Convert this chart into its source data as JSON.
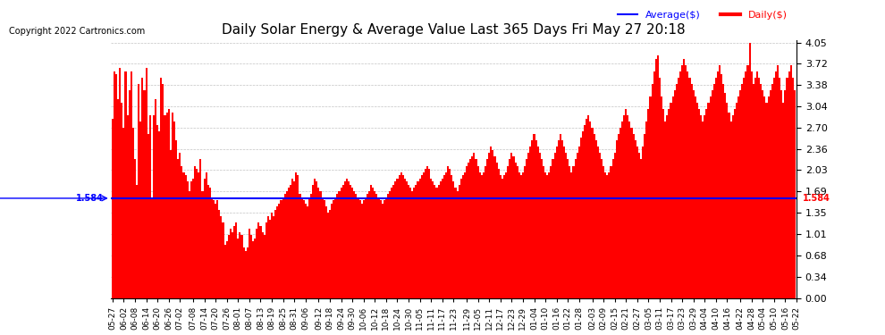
{
  "title": "Daily Solar Energy & Average Value Last 365 Days Fri May 27 20:18",
  "copyright": "Copyright 2022 Cartronics.com",
  "average_value": 1.584,
  "average_label": "1.584",
  "yticks": [
    0.0,
    0.34,
    0.68,
    1.01,
    1.35,
    1.69,
    2.03,
    2.36,
    2.7,
    3.04,
    3.38,
    3.72,
    4.05
  ],
  "ymax": 4.05,
  "ymin": 0.0,
  "bar_color": "#ff0000",
  "avg_line_color": "#0000ff",
  "background_color": "#ffffff",
  "grid_color": "#aaaaaa",
  "legend_avg_color": "#0000ff",
  "legend_daily_color": "#ff0000",
  "x_labels": [
    "05-27",
    "06-02",
    "06-08",
    "06-14",
    "06-20",
    "06-26",
    "07-02",
    "07-08",
    "07-14",
    "07-20",
    "07-26",
    "08-01",
    "08-07",
    "08-13",
    "08-19",
    "08-25",
    "08-31",
    "09-06",
    "09-12",
    "09-18",
    "09-24",
    "09-30",
    "10-06",
    "10-12",
    "10-18",
    "10-24",
    "10-30",
    "11-05",
    "11-11",
    "11-17",
    "11-23",
    "11-29",
    "12-05",
    "12-11",
    "12-17",
    "12-23",
    "12-29",
    "01-04",
    "01-10",
    "01-16",
    "01-22",
    "01-28",
    "02-03",
    "02-09",
    "02-15",
    "02-21",
    "02-27",
    "03-05",
    "03-11",
    "03-17",
    "03-23",
    "03-29",
    "04-04",
    "04-10",
    "04-16",
    "04-22",
    "04-28",
    "05-04",
    "05-10",
    "05-16",
    "05-22"
  ],
  "daily_values": [
    2.85,
    3.6,
    3.55,
    3.15,
    3.65,
    3.1,
    2.7,
    3.6,
    2.9,
    3.3,
    3.6,
    2.7,
    2.2,
    1.8,
    3.4,
    2.8,
    3.5,
    3.3,
    3.65,
    2.6,
    2.9,
    1.6,
    2.9,
    3.15,
    2.75,
    2.65,
    3.5,
    3.4,
    2.9,
    2.95,
    3.0,
    2.35,
    2.95,
    2.8,
    2.5,
    2.2,
    2.3,
    2.1,
    2.0,
    1.95,
    1.85,
    1.7,
    1.85,
    1.9,
    2.1,
    2.05,
    2.0,
    2.2,
    1.7,
    1.9,
    2.0,
    1.8,
    1.75,
    1.6,
    1.55,
    1.5,
    1.55,
    1.4,
    1.3,
    1.2,
    0.85,
    0.9,
    1.0,
    1.1,
    1.05,
    1.15,
    1.2,
    0.95,
    1.05,
    1.0,
    0.8,
    0.75,
    0.8,
    1.1,
    1.0,
    0.9,
    0.95,
    1.1,
    1.2,
    1.15,
    1.05,
    1.0,
    1.2,
    1.3,
    1.25,
    1.35,
    1.3,
    1.4,
    1.45,
    1.5,
    1.55,
    1.6,
    1.65,
    1.7,
    1.75,
    1.8,
    1.9,
    1.85,
    2.0,
    1.95,
    1.65,
    1.6,
    1.55,
    1.5,
    1.45,
    1.6,
    1.65,
    1.8,
    1.9,
    1.85,
    1.75,
    1.7,
    1.6,
    1.55,
    1.45,
    1.35,
    1.4,
    1.5,
    1.55,
    1.6,
    1.65,
    1.7,
    1.75,
    1.8,
    1.85,
    1.9,
    1.85,
    1.8,
    1.75,
    1.7,
    1.65,
    1.6,
    1.55,
    1.5,
    1.55,
    1.6,
    1.65,
    1.7,
    1.8,
    1.75,
    1.7,
    1.65,
    1.6,
    1.55,
    1.5,
    1.55,
    1.6,
    1.65,
    1.7,
    1.75,
    1.8,
    1.85,
    1.9,
    1.95,
    2.0,
    1.95,
    1.9,
    1.85,
    1.8,
    1.75,
    1.7,
    1.75,
    1.8,
    1.85,
    1.9,
    1.95,
    2.0,
    2.05,
    2.1,
    2.05,
    1.9,
    1.85,
    1.8,
    1.75,
    1.8,
    1.85,
    1.9,
    1.95,
    2.0,
    2.1,
    2.05,
    1.95,
    1.85,
    1.75,
    1.7,
    1.8,
    1.9,
    1.95,
    2.0,
    2.1,
    2.15,
    2.2,
    2.25,
    2.3,
    2.2,
    2.1,
    2.0,
    1.95,
    2.0,
    2.1,
    2.2,
    2.3,
    2.4,
    2.35,
    2.25,
    2.15,
    2.05,
    1.95,
    1.9,
    1.95,
    2.0,
    2.1,
    2.2,
    2.3,
    2.25,
    2.15,
    2.1,
    2.0,
    1.95,
    2.0,
    2.1,
    2.2,
    2.3,
    2.4,
    2.5,
    2.6,
    2.5,
    2.4,
    2.3,
    2.2,
    2.1,
    2.0,
    1.95,
    2.0,
    2.1,
    2.2,
    2.3,
    2.4,
    2.5,
    2.6,
    2.5,
    2.4,
    2.3,
    2.2,
    2.1,
    2.0,
    2.1,
    2.2,
    2.3,
    2.4,
    2.55,
    2.65,
    2.75,
    2.85,
    2.9,
    2.8,
    2.7,
    2.6,
    2.5,
    2.4,
    2.3,
    2.2,
    2.1,
    2.0,
    1.95,
    2.0,
    2.1,
    2.2,
    2.3,
    2.5,
    2.6,
    2.7,
    2.8,
    2.9,
    3.0,
    2.9,
    2.8,
    2.7,
    2.6,
    2.5,
    2.4,
    2.3,
    2.2,
    2.4,
    2.6,
    2.8,
    3.0,
    3.2,
    3.4,
    3.6,
    3.8,
    3.85,
    3.5,
    3.2,
    3.0,
    2.8,
    2.9,
    3.0,
    3.1,
    3.2,
    3.3,
    3.4,
    3.5,
    3.6,
    3.7,
    3.8,
    3.7,
    3.6,
    3.5,
    3.4,
    3.3,
    3.2,
    3.1,
    3.0,
    2.9,
    2.8,
    2.9,
    3.0,
    3.1,
    3.2,
    3.3,
    3.4,
    3.5,
    3.6,
    3.7,
    3.55,
    3.4,
    3.25,
    3.1,
    2.95,
    2.8,
    2.9,
    3.0,
    3.1,
    3.2,
    3.3,
    3.4,
    3.5,
    3.6,
    3.7,
    4.05,
    3.6,
    3.4,
    3.5,
    3.6,
    3.5,
    3.4,
    3.3,
    3.2,
    3.1,
    3.2,
    3.3,
    3.4,
    3.5,
    3.6,
    3.7,
    3.5,
    3.3,
    3.1,
    3.3,
    3.5,
    3.6,
    3.7,
    3.5,
    3.3
  ]
}
